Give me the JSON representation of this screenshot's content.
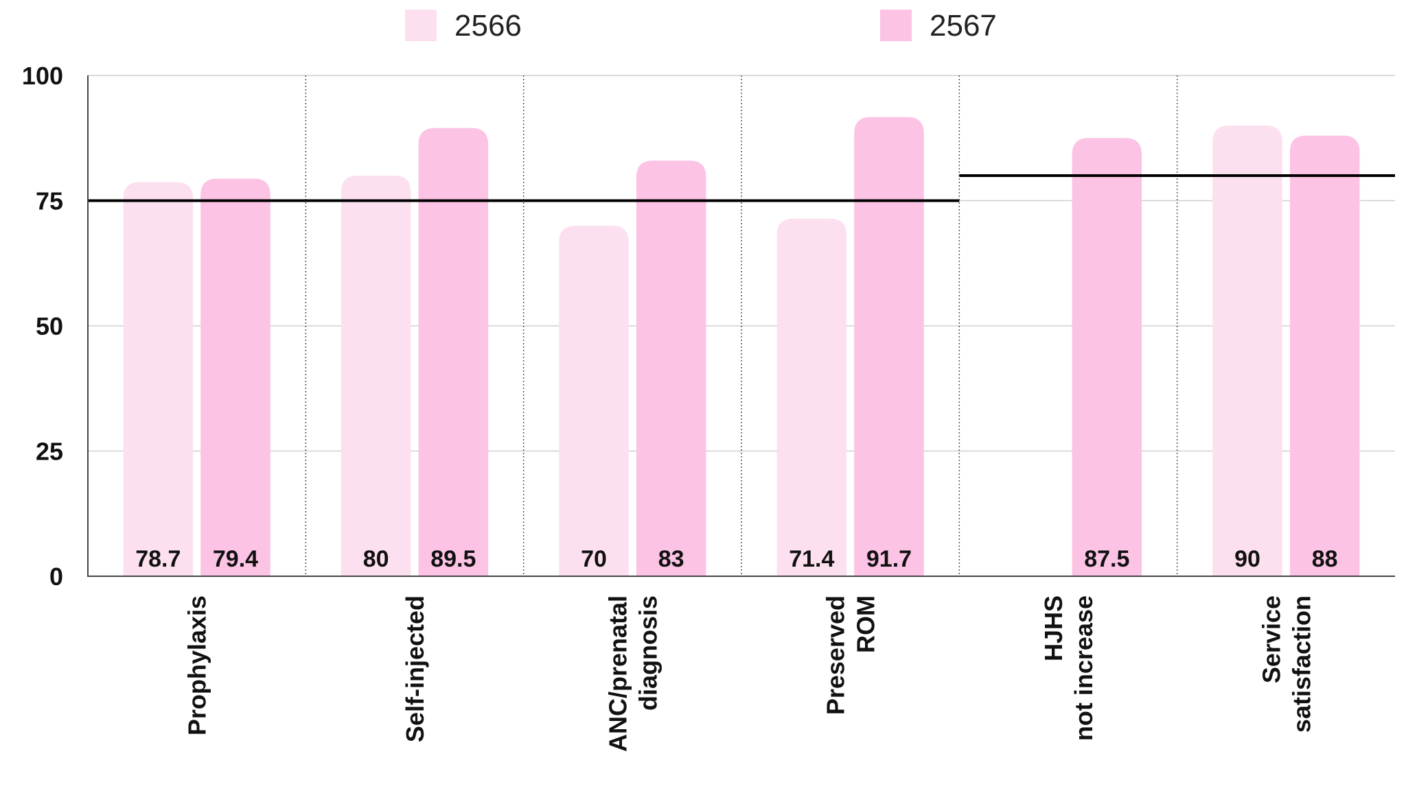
{
  "chart_data": {
    "type": "bar",
    "categories": [
      [
        "Prophylaxis"
      ],
      [
        "Self-injected"
      ],
      [
        "ANC/prenatal",
        "diagnosis"
      ],
      [
        "Preserved",
        "ROM"
      ],
      [
        "HJHS",
        "not increase"
      ],
      [
        "Service",
        "satisfaction"
      ]
    ],
    "series": [
      {
        "name": "2566",
        "color": "#fde0ef",
        "values": [
          78.7,
          80,
          70,
          71.4,
          null,
          90
        ]
      },
      {
        "name": "2567",
        "color": "#fcc3e4",
        "values": [
          79.4,
          89.5,
          83,
          91.7,
          87.5,
          88
        ]
      }
    ],
    "target_lines": [
      {
        "from_category": 0,
        "to_category": 3,
        "value": 75
      },
      {
        "from_category": 4,
        "to_category": 5,
        "value": 80
      }
    ],
    "yticks": [
      "0",
      "25",
      "50",
      "75",
      "100"
    ],
    "ylim": [
      0,
      100
    ],
    "grid": true,
    "legend_position": "top"
  }
}
